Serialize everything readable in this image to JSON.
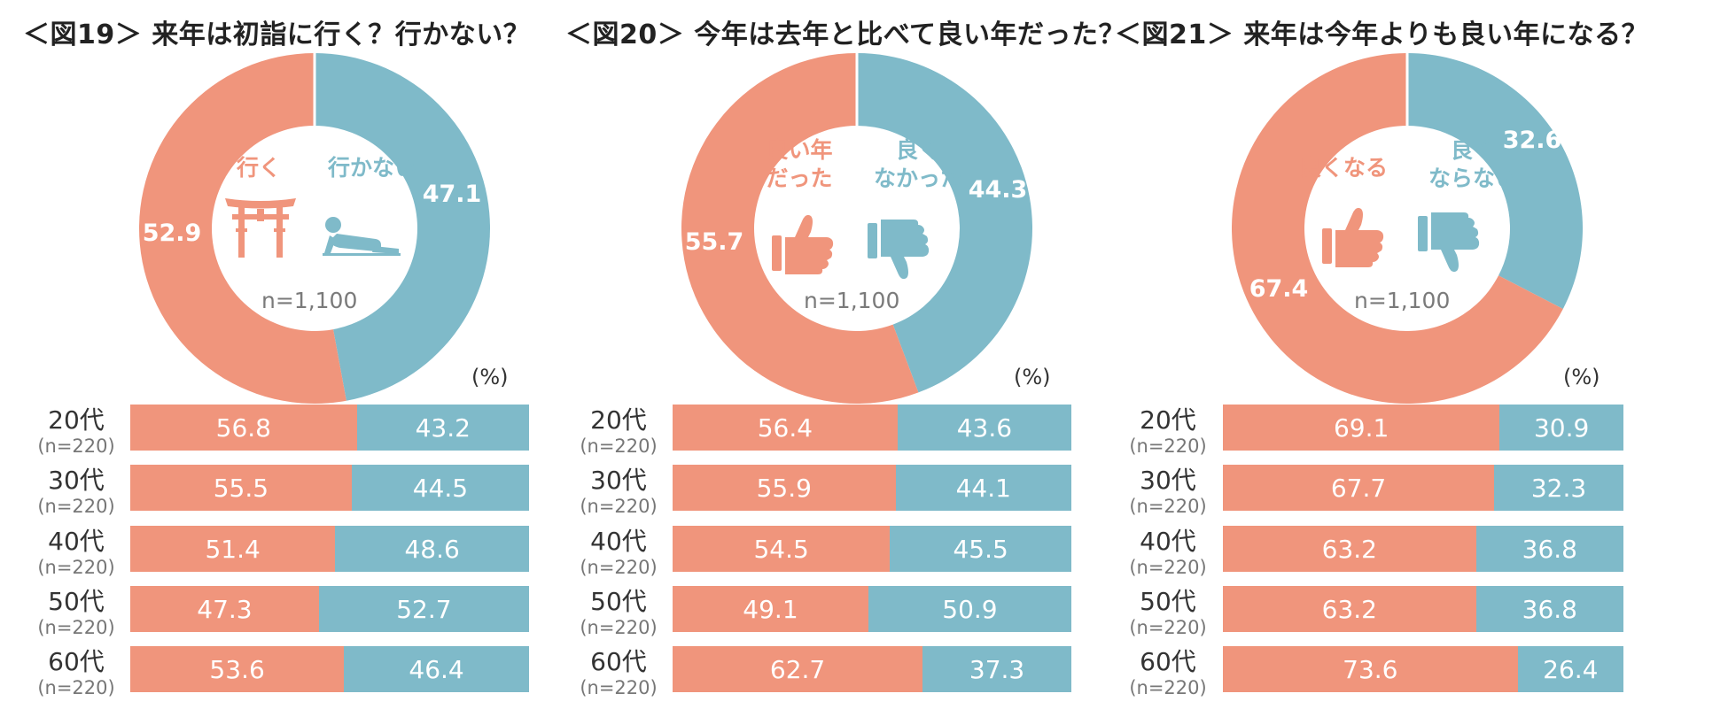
{
  "colors": {
    "positive": "#F0957C",
    "negative": "#7FBAC9",
    "n_text": "#7A7A7A"
  },
  "icon_names": [
    "torii-gate-icon",
    "person-lying-down-icon",
    "thumbs-up-icon",
    "thumbs-down-icon"
  ],
  "chart_data": [
    {
      "type": "pie",
      "title": "＜図19＞ 来年は初詣に行く？行かない？",
      "center_n": "n=1,100",
      "unit_label": "(%)",
      "series": [
        {
          "label": "行く",
          "value": 52.9,
          "value_label": "52.9",
          "icon": "torii-gate-icon"
        },
        {
          "label": "行かない",
          "value": 47.1,
          "value_label": "47.1",
          "icon": "person-lying-down-icon"
        }
      ],
      "breakdown": {
        "type": "bar",
        "stacked": true,
        "categories": [
          "20代",
          "30代",
          "40代",
          "50代",
          "60代"
        ],
        "n_labels": [
          "(n=220)",
          "(n=220)",
          "(n=220)",
          "(n=220)",
          "(n=220)"
        ],
        "series": [
          {
            "name": "行く",
            "values": [
              56.8,
              55.5,
              51.4,
              47.3,
              53.6
            ],
            "labels": [
              "56.8",
              "55.5",
              "51.4",
              "47.3",
              "53.6"
            ]
          },
          {
            "name": "行かない",
            "values": [
              43.2,
              44.5,
              48.6,
              52.7,
              46.4
            ],
            "labels": [
              "43.2",
              "44.5",
              "48.6",
              "52.7",
              "46.4"
            ]
          }
        ]
      }
    },
    {
      "type": "pie",
      "title": "＜図20＞ 今年は去年と比べて良い年だった？",
      "center_n": "n=1,100",
      "unit_label": "(%)",
      "series": [
        {
          "label": "良い年\nだった",
          "value": 55.7,
          "value_label": "55.7",
          "icon": "thumbs-up-icon"
        },
        {
          "label": "良く\nなかった",
          "value": 44.3,
          "value_label": "44.3",
          "icon": "thumbs-down-icon"
        }
      ],
      "breakdown": {
        "type": "bar",
        "stacked": true,
        "categories": [
          "20代",
          "30代",
          "40代",
          "50代",
          "60代"
        ],
        "n_labels": [
          "(n=220)",
          "(n=220)",
          "(n=220)",
          "(n=220)",
          "(n=220)"
        ],
        "series": [
          {
            "name": "良い年だった",
            "values": [
              56.4,
              55.9,
              54.5,
              49.1,
              62.7
            ],
            "labels": [
              "56.4",
              "55.9",
              "54.5",
              "49.1",
              "62.7"
            ]
          },
          {
            "name": "良くなかった",
            "values": [
              43.6,
              44.1,
              45.5,
              50.9,
              37.3
            ],
            "labels": [
              "43.6",
              "44.1",
              "45.5",
              "50.9",
              "37.3"
            ]
          }
        ]
      }
    },
    {
      "type": "pie",
      "title": "＜図21＞ 来年は今年よりも良い年になる？",
      "center_n": "n=1,100",
      "unit_label": "(%)",
      "series": [
        {
          "label": "良くなる",
          "value": 67.4,
          "value_label": "67.4",
          "icon": "thumbs-up-icon"
        },
        {
          "label": "良く\nならない",
          "value": 32.6,
          "value_label": "32.6",
          "icon": "thumbs-down-icon"
        }
      ],
      "breakdown": {
        "type": "bar",
        "stacked": true,
        "categories": [
          "20代",
          "30代",
          "40代",
          "50代",
          "60代"
        ],
        "n_labels": [
          "(n=220)",
          "(n=220)",
          "(n=220)",
          "(n=220)",
          "(n=220)"
        ],
        "series": [
          {
            "name": "良くなる",
            "values": [
              69.1,
              67.7,
              63.2,
              63.2,
              73.6
            ],
            "labels": [
              "69.1",
              "67.7",
              "63.2",
              "63.2",
              "73.6"
            ]
          },
          {
            "name": "良くならない",
            "values": [
              30.9,
              32.3,
              36.8,
              36.8,
              26.4
            ],
            "labels": [
              "30.9",
              "32.3",
              "36.8",
              "36.8",
              "26.4"
            ]
          }
        ]
      }
    }
  ]
}
